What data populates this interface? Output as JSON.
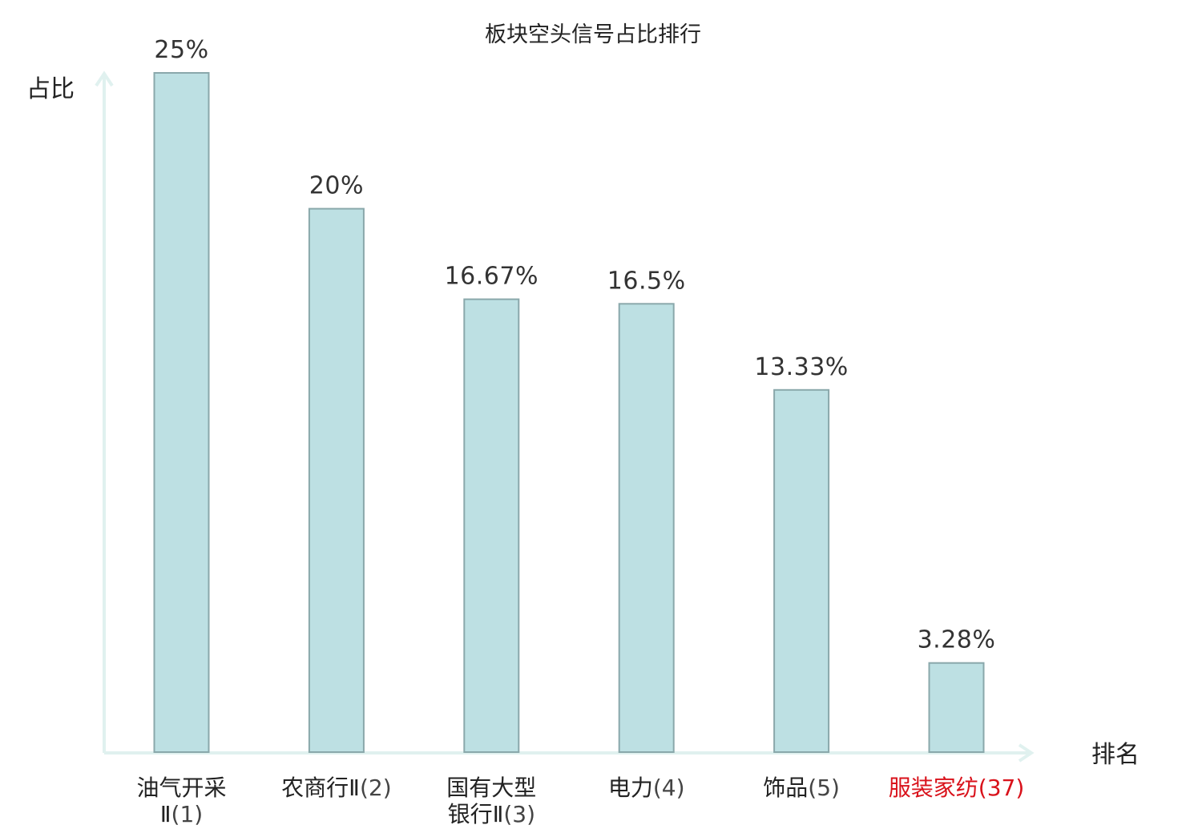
{
  "chart_data": {
    "type": "bar",
    "title": "板块空头信号占比排行",
    "ylabel": "占比",
    "xlabel": "排名",
    "ylim": [
      0,
      25
    ],
    "grid": false,
    "legend": "none",
    "categories": [
      {
        "name_lines": [
          "油气开采",
          "Ⅱ"
        ],
        "rank": "(1)",
        "value": 25,
        "label": "25%",
        "highlight": false
      },
      {
        "name_lines": [
          "农商行Ⅱ"
        ],
        "rank": "(2)",
        "value": 20,
        "label": "20%",
        "highlight": false
      },
      {
        "name_lines": [
          "国有大型",
          "银行Ⅱ"
        ],
        "rank": "(3)",
        "value": 16.67,
        "label": "16.67%",
        "highlight": false
      },
      {
        "name_lines": [
          "电力"
        ],
        "rank": "(4)",
        "value": 16.5,
        "label": "16.5%",
        "highlight": false
      },
      {
        "name_lines": [
          "饰品"
        ],
        "rank": "(5)",
        "value": 13.33,
        "label": "13.33%",
        "highlight": false
      },
      {
        "name_lines": [
          "服装家纺"
        ],
        "rank": "(37)",
        "value": 3.28,
        "label": "3.28%",
        "highlight": true
      }
    ],
    "colors": {
      "bar_fill": "#bde0e3",
      "bar_stroke": "#8aa8ab",
      "axis": "#e0f1ef",
      "text": "#222222",
      "rank_text": "#444444",
      "highlight": "#d9121b"
    }
  }
}
